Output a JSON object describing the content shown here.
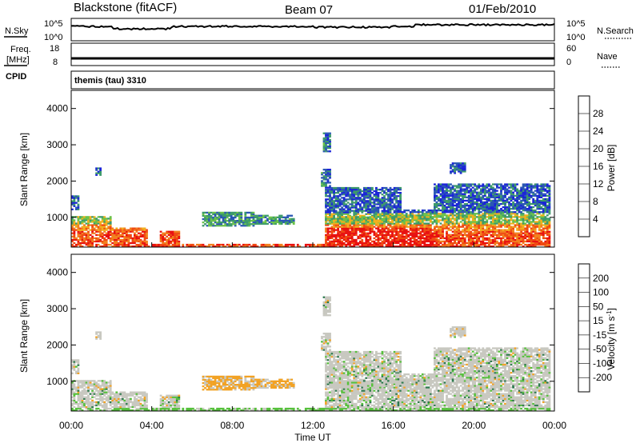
{
  "header": {
    "station": "Blackstone (fitACF)",
    "beam": "Beam 07",
    "date": "01/Feb/2010"
  },
  "top_panels": {
    "nsky_label": "N.Sky",
    "nsky_ticks": [
      "10^5",
      "10^0"
    ],
    "nsearch_label": "N.Search",
    "freq_label": "Freq.",
    "freq_unit": "[MHz]",
    "freq_ticks": [
      "18",
      "8"
    ],
    "nave_ticks": [
      "60",
      "0"
    ],
    "nave_label": "Nave",
    "cpid_label": "CPID",
    "cpid_value": "themis (tau) 3310"
  },
  "colors": {
    "power": [
      "#1a23d8",
      "#2b57b5",
      "#3d9a6b",
      "#6bc24a",
      "#f2b01e",
      "#f2801e",
      "#f04a12",
      "#e81010"
    ],
    "velocity": [
      "#2233c8",
      "#2b5aa8",
      "#2e7a4e",
      "#56c03c",
      "#c8c8c0",
      "#f2a224",
      "#f07818",
      "#e84a10",
      "#e81414"
    ]
  },
  "chart_data": [
    {
      "type": "heatmap",
      "name": "power",
      "xlabel": "",
      "ylabel": "Slant Range [km]",
      "ylim": [
        180,
        4500
      ],
      "xlim": [
        0,
        24
      ],
      "yticks": [
        "1000",
        "2000",
        "3000",
        "4000"
      ],
      "ytick_values": [
        1000,
        2000,
        3000,
        4000
      ],
      "colorbar_label": "Power [dB]",
      "colorbar_ticks": [
        "28",
        "24",
        "20",
        "16",
        "12",
        "8",
        "4"
      ]
    },
    {
      "type": "heatmap",
      "name": "velocity",
      "xlabel": "Time UT",
      "ylabel": "Slant Range [km]",
      "ylim": [
        180,
        4500
      ],
      "xlim": [
        0,
        24
      ],
      "xticks": [
        "00:00",
        "04:00",
        "08:00",
        "12:00",
        "16:00",
        "20:00",
        "00:00"
      ],
      "xtick_values": [
        0,
        4,
        8,
        12,
        16,
        20,
        24
      ],
      "yticks": [
        "1000",
        "2000",
        "3000",
        "4000"
      ],
      "ytick_values": [
        1000,
        2000,
        3000,
        4000
      ],
      "colorbar_label": "Velocity [m s^-1]",
      "colorbar_ticks": [
        "200",
        "100",
        "50",
        "15",
        "-15",
        "-50",
        "-100",
        "-200"
      ]
    }
  ]
}
